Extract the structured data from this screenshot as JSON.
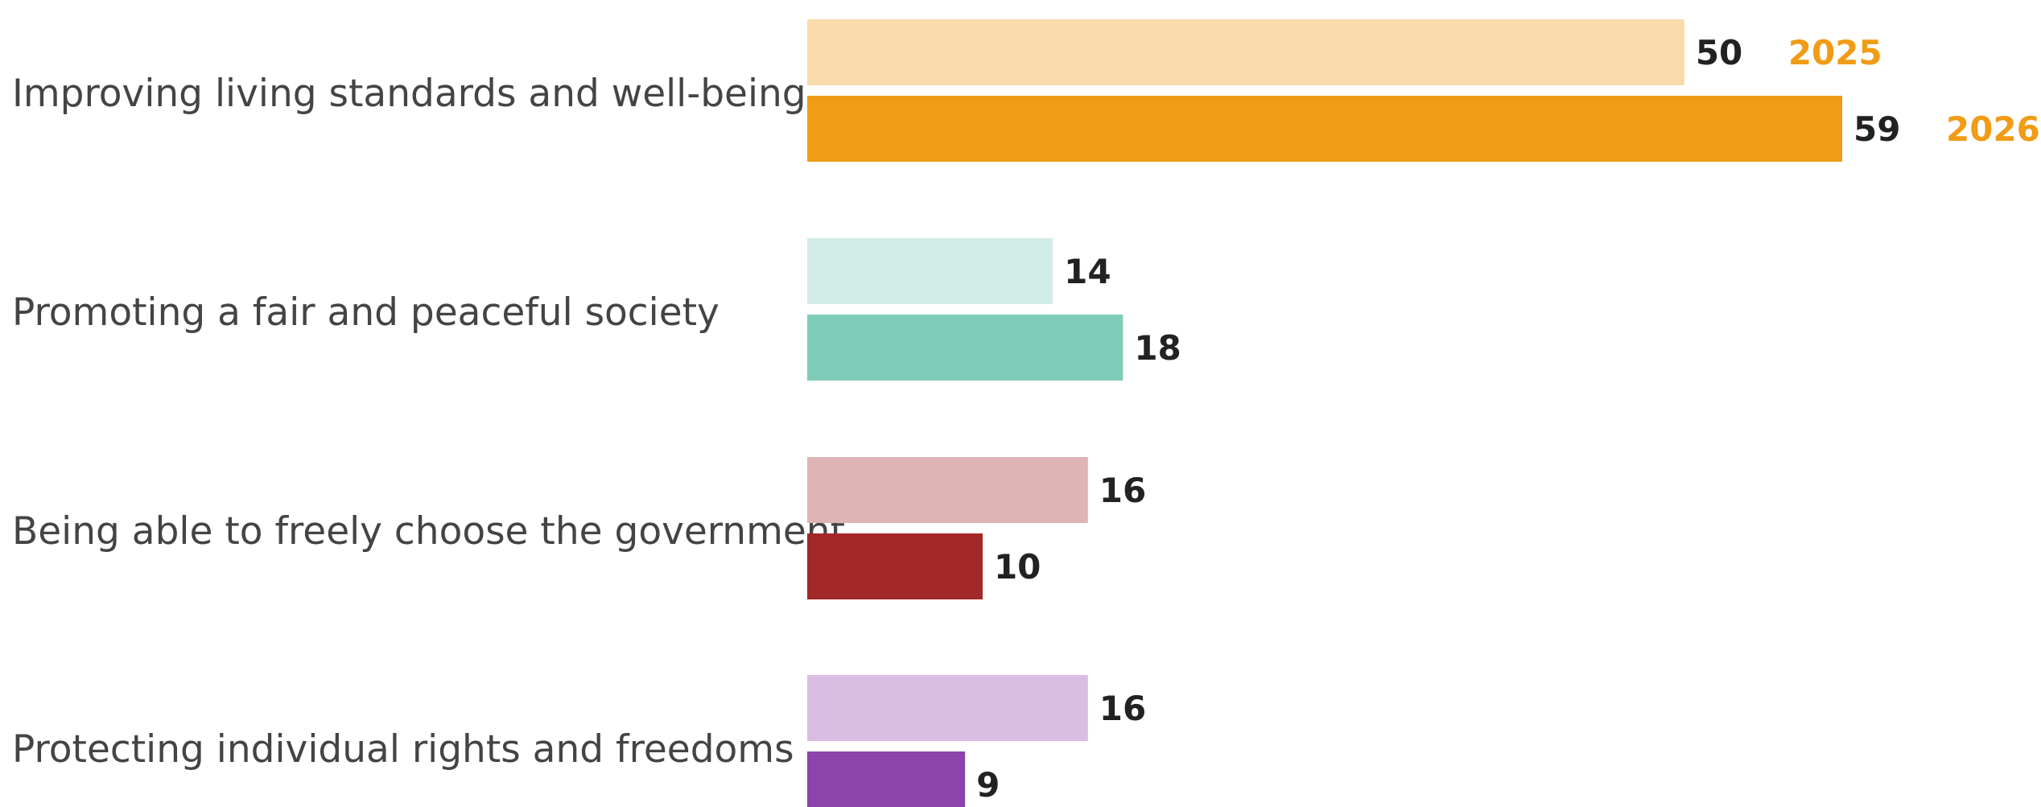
{
  "chart_data": {
    "type": "bar",
    "orientation": "horizontal",
    "title": "",
    "xlabel": "",
    "ylabel": "",
    "categories": [
      "Improving living standards and well-being",
      "Promoting a fair and peaceful society",
      "Being able to freely choose the government",
      "Protecting individual rights and freedoms"
    ],
    "series": [
      {
        "name": "2025",
        "values": [
          50,
          14,
          16,
          16
        ]
      },
      {
        "name": "2026",
        "values": [
          59,
          18,
          10,
          9
        ]
      }
    ],
    "colors": [
      {
        "2025": "#f9dbab",
        "2026": "#f09c16"
      },
      {
        "2025": "#d2ece7",
        "2026": "#7fcdb8"
      },
      {
        "2025": "#dfb4b4",
        "2026": "#a3282a"
      },
      {
        "2025": "#d9bde2",
        "2026": "#8c44ac"
      }
    ],
    "year_label_color": "#f09c16",
    "xlim": [
      0,
      59
    ],
    "grid": false,
    "legend": "inline labels beside first category bars"
  }
}
